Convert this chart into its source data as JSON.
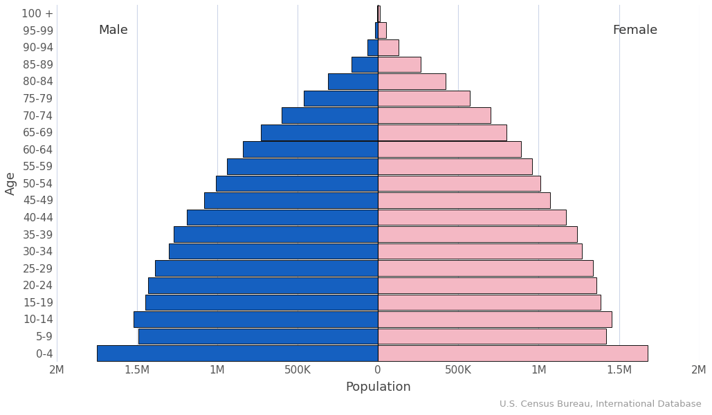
{
  "xlabel": "Population",
  "ylabel": "Age",
  "source": "U.S. Census Bureau, International Database",
  "age_groups": [
    "0-4",
    "5-9",
    "10-14",
    "15-19",
    "20-24",
    "25-29",
    "30-34",
    "35-39",
    "40-44",
    "45-49",
    "50-54",
    "55-59",
    "60-64",
    "65-69",
    "70-74",
    "75-79",
    "80-84",
    "85-89",
    "90-94",
    "95-99",
    "100 +"
  ],
  "male": [
    1750000,
    1490000,
    1520000,
    1450000,
    1430000,
    1390000,
    1300000,
    1270000,
    1190000,
    1080000,
    1010000,
    940000,
    840000,
    730000,
    600000,
    460000,
    310000,
    165000,
    65000,
    20000,
    4000
  ],
  "female": [
    1680000,
    1420000,
    1455000,
    1385000,
    1360000,
    1340000,
    1270000,
    1240000,
    1170000,
    1070000,
    1010000,
    960000,
    890000,
    800000,
    700000,
    570000,
    420000,
    265000,
    130000,
    50000,
    13000
  ],
  "male_color": "#1560c0",
  "female_color": "#f4b8c4",
  "bar_edge_color": "#111111",
  "bar_edge_width": 0.7,
  "male_label": "Male",
  "female_label": "Female",
  "xlim": 2000000,
  "xtick_values": [
    -2000000,
    -1500000,
    -1000000,
    -500000,
    0,
    500000,
    1000000,
    1500000,
    2000000
  ],
  "xtick_labels": [
    "2M",
    "1.5M",
    "1M",
    "500K",
    "0",
    "500K",
    "1M",
    "1.5M",
    "2M"
  ],
  "background_color": "#ffffff",
  "grid_color": "#ccd5e8",
  "label_fontsize": 13,
  "tick_fontsize": 11,
  "source_fontsize": 9.5
}
